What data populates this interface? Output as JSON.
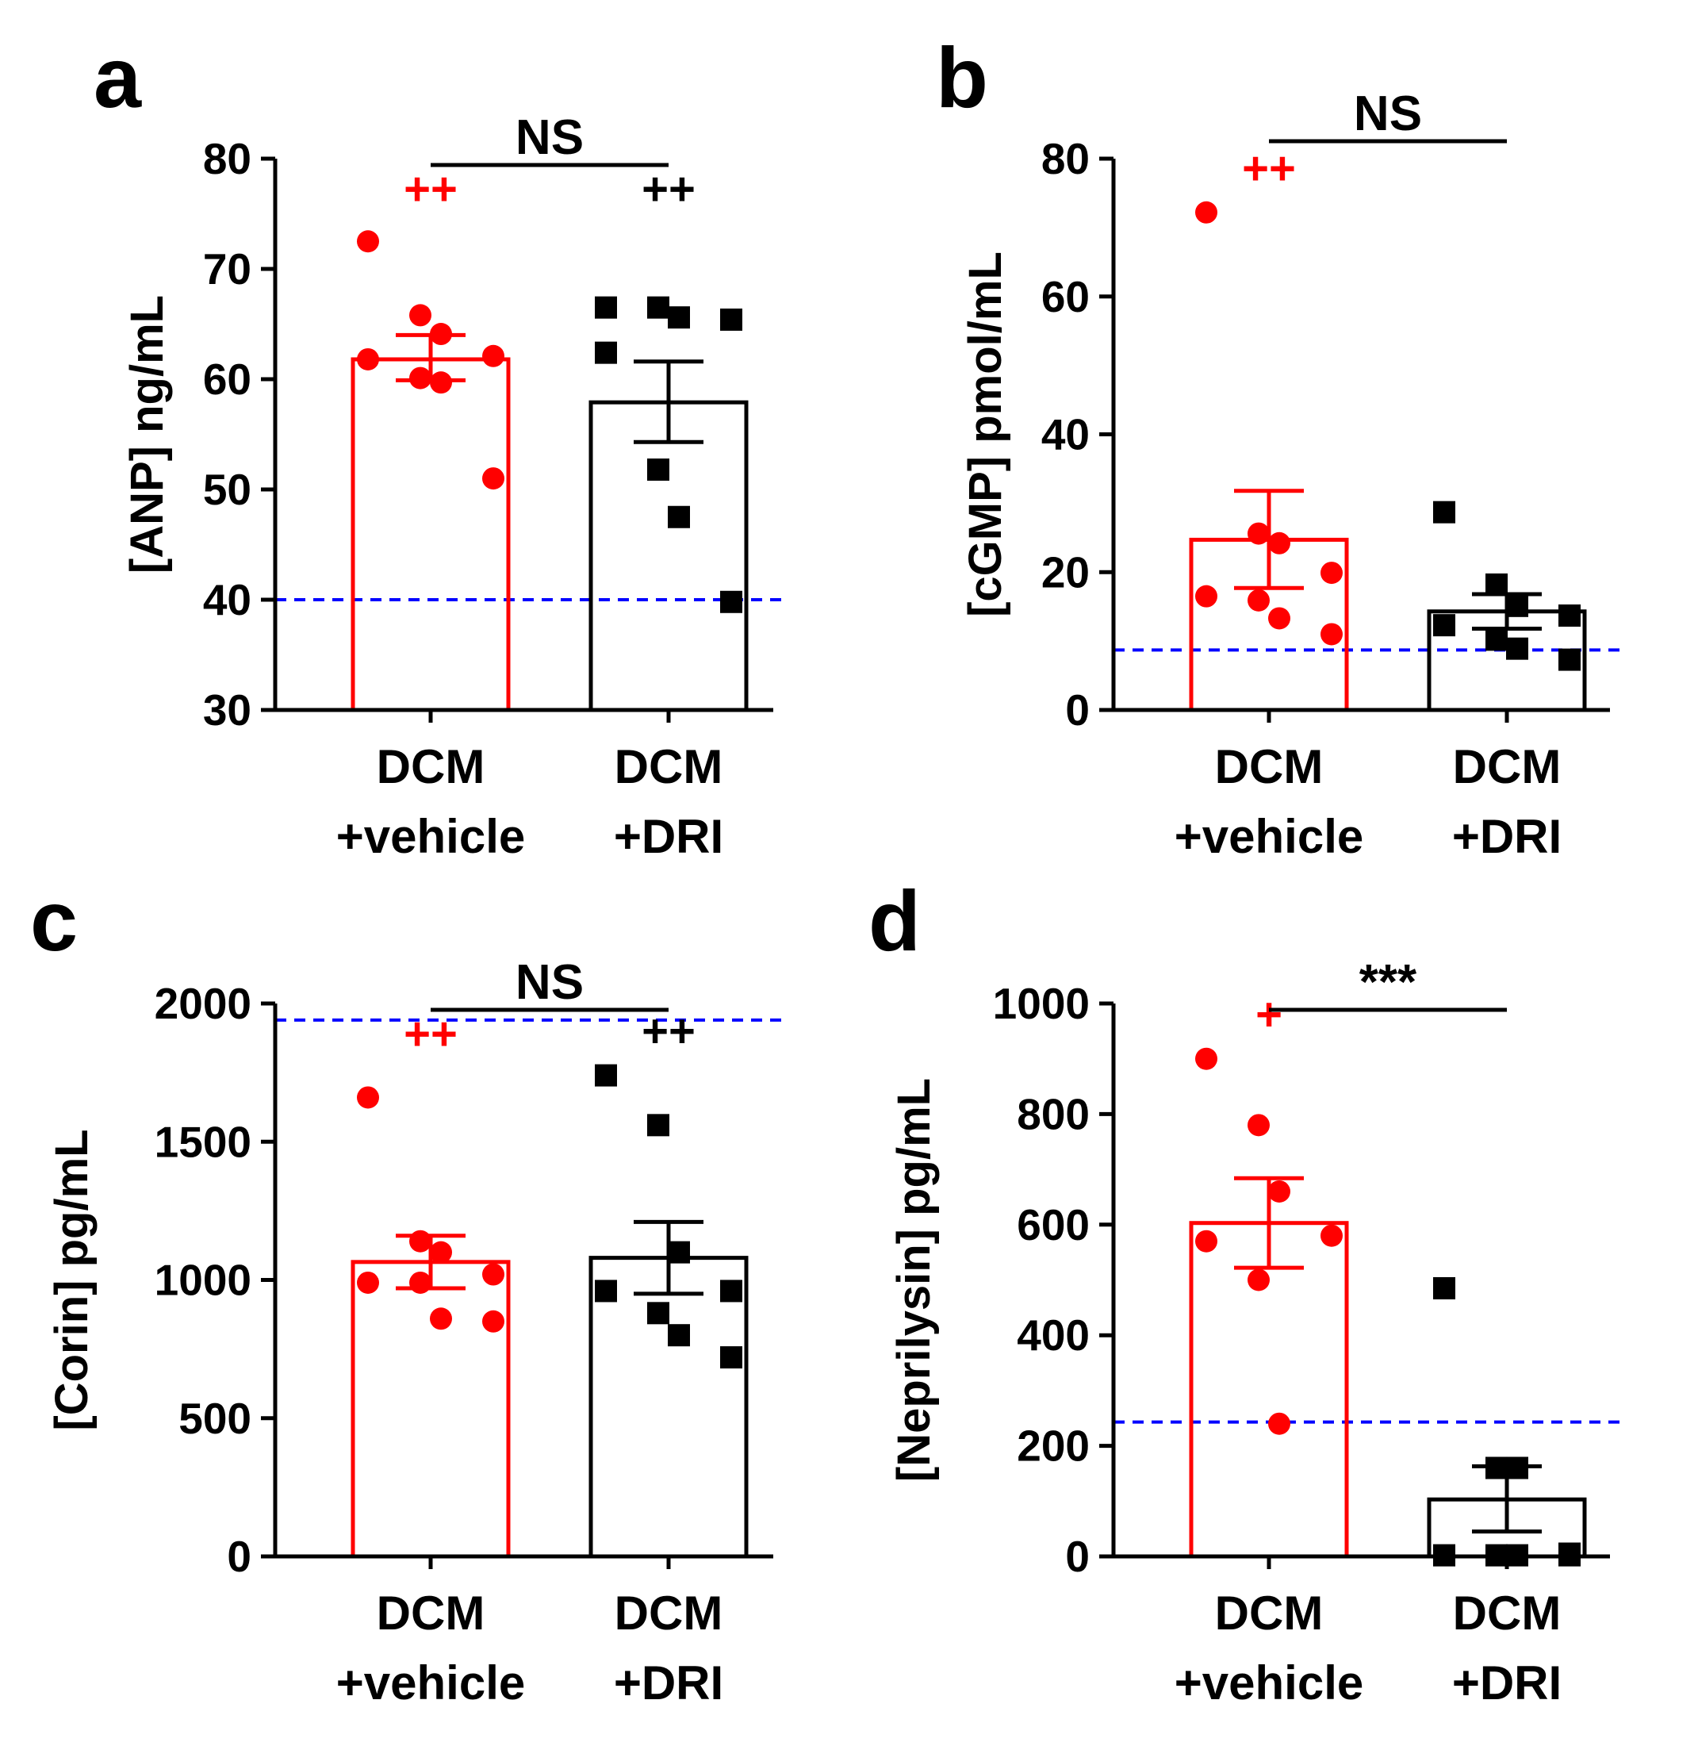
{
  "colors": {
    "vehicle": "#ff0000",
    "dri": "#000000",
    "reference": "#0000ff"
  },
  "chart_data": [
    {
      "panel": "a",
      "type": "bar",
      "ylabel": "[ANP] ng/mL",
      "ylim": [
        30,
        80
      ],
      "yticks": [
        30,
        40,
        50,
        60,
        70,
        80
      ],
      "categories": [
        {
          "line1": "DCM",
          "line2": "+vehicle"
        },
        {
          "line1": "DCM",
          "line2": "+DRI"
        }
      ],
      "series": [
        {
          "mean": 61.8,
          "sem_low": 59.9,
          "sem_high": 64.0,
          "points": [
            72.5,
            65.8,
            64.1,
            62.1,
            61.8,
            60.1,
            59.7,
            51.0
          ],
          "mark": "++"
        },
        {
          "mean": 57.9,
          "sem_low": 54.3,
          "sem_high": 61.6,
          "points": [
            66.5,
            66.5,
            65.6,
            65.4,
            62.4,
            51.8,
            47.5,
            39.8
          ],
          "mark": "++"
        }
      ],
      "reference": 40,
      "comparison": "NS"
    },
    {
      "panel": "b",
      "type": "bar",
      "ylabel": "[cGMP] pmol/mL",
      "ylim": [
        0,
        80
      ],
      "yticks": [
        0,
        20,
        40,
        60,
        80
      ],
      "categories": [
        {
          "line1": "DCM",
          "line2": "+vehicle"
        },
        {
          "line1": "DCM",
          "line2": "+DRI"
        }
      ],
      "series": [
        {
          "mean": 24.7,
          "sem_low": 17.7,
          "sem_high": 31.8,
          "points": [
            72.2,
            25.6,
            24.2,
            19.9,
            16.5,
            15.9,
            13.3,
            11.0
          ],
          "mark": "++"
        },
        {
          "mean": 14.3,
          "sem_low": 11.8,
          "sem_high": 16.8,
          "points": [
            28.7,
            18.2,
            15.1,
            13.7,
            12.3,
            10.2,
            8.9,
            7.3
          ],
          "mark": ""
        }
      ],
      "reference": 8.7,
      "comparison": "NS"
    },
    {
      "panel": "c",
      "type": "bar",
      "ylabel": "[Corin] pg/mL",
      "ylim": [
        0,
        2000
      ],
      "yticks": [
        0,
        500,
        1000,
        1500,
        2000
      ],
      "categories": [
        {
          "line1": "DCM",
          "line2": "+vehicle"
        },
        {
          "line1": "DCM",
          "line2": "+DRI"
        }
      ],
      "series": [
        {
          "mean": 1065,
          "sem_low": 970,
          "sem_high": 1160,
          "points": [
            1660,
            1140,
            1100,
            1020,
            990,
            990,
            860,
            850
          ],
          "mark": "++"
        },
        {
          "mean": 1080,
          "sem_low": 950,
          "sem_high": 1210,
          "points": [
            1740,
            1560,
            1100,
            960,
            960,
            880,
            800,
            720
          ],
          "mark": "++"
        }
      ],
      "reference": 1940,
      "comparison": "NS"
    },
    {
      "panel": "d",
      "type": "bar",
      "ylabel": "[Neprilysin] pg/mL",
      "ylim": [
        0,
        1000
      ],
      "yticks": [
        0,
        200,
        400,
        600,
        800,
        1000
      ],
      "categories": [
        {
          "line1": "DCM",
          "line2": "+vehicle"
        },
        {
          "line1": "DCM",
          "line2": "+DRI"
        }
      ],
      "series": [
        {
          "mean": 603,
          "sem_low": 522,
          "sem_high": 684,
          "points": [
            900,
            780,
            660,
            580,
            570,
            500,
            240
          ],
          "mark": "+"
        },
        {
          "mean": 103,
          "sem_low": 45,
          "sem_high": 163,
          "points": [
            485,
            160,
            160,
            5,
            2,
            2,
            2,
            2
          ],
          "mark": ""
        }
      ],
      "reference": 243,
      "comparison": "***"
    }
  ]
}
